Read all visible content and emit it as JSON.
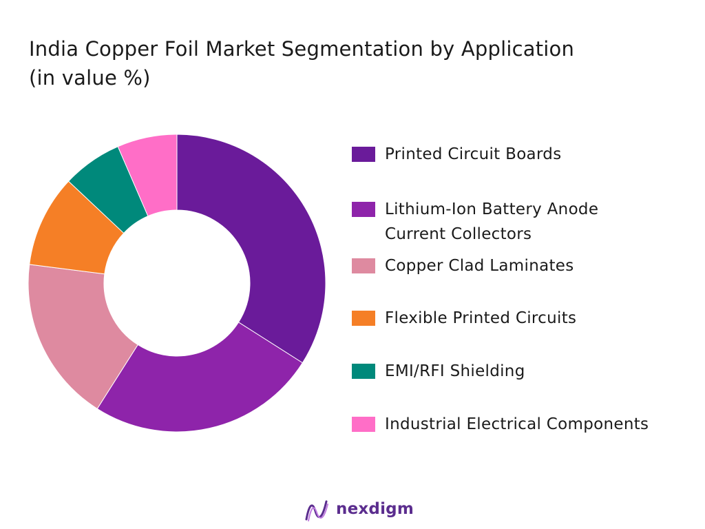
{
  "chart_data": {
    "type": "pie",
    "variant": "donut",
    "title_line1": "India Copper Foil Market Segmentation by Application",
    "title_line2": "(in value %)",
    "categories": [
      "Printed Circuit Boards",
      "Lithium-Ion Battery Anode Current Collectors",
      "Copper Clad Laminates",
      "Flexible Printed Circuits",
      "EMI/RFI Shielding",
      "Industrial Electrical Components"
    ],
    "values": [
      34,
      25,
      18,
      10,
      6.5,
      6.5
    ],
    "colors": [
      "#6a1b9a",
      "#8e24aa",
      "#de8aa0",
      "#f57f26",
      "#00897b",
      "#ff6ec7"
    ],
    "legend_position": "right"
  },
  "brand": {
    "name": "nexdigm",
    "color": "#5b2d8e"
  }
}
